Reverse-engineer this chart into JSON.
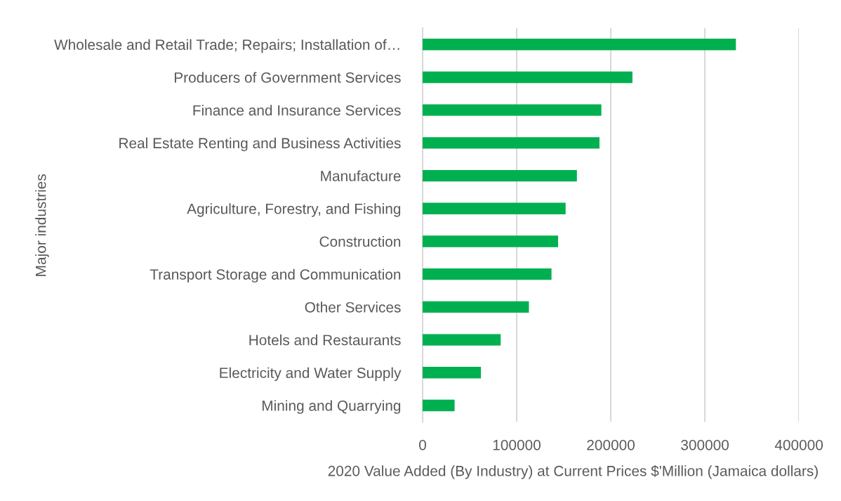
{
  "chart_data": {
    "type": "bar",
    "orientation": "horizontal",
    "xlabel": "2020 Value Added (By Industry) at Current Prices $'Million (Jamaica dollars)",
    "ylabel": "Major industries",
    "categories": [
      "Wholesale and Retail Trade; Repairs; Installation of…",
      "Producers of Government Services",
      "Finance and Insurance Services",
      "Real Estate Renting and Business Activities",
      "Manufacture",
      "Agriculture, Forestry, and Fishing",
      "Construction",
      "Transport Storage and Communication",
      "Other Services",
      "Hotels and Restaurants",
      "Electricity and Water Supply",
      "Mining and Quarrying"
    ],
    "values": [
      333000,
      223000,
      190000,
      188000,
      164000,
      152000,
      144000,
      137000,
      113000,
      83000,
      62000,
      34000
    ],
    "color": "#00b050",
    "xlim": [
      0,
      400000
    ],
    "xticks": [
      0,
      100000,
      200000,
      300000,
      400000
    ],
    "grid": "x"
  }
}
